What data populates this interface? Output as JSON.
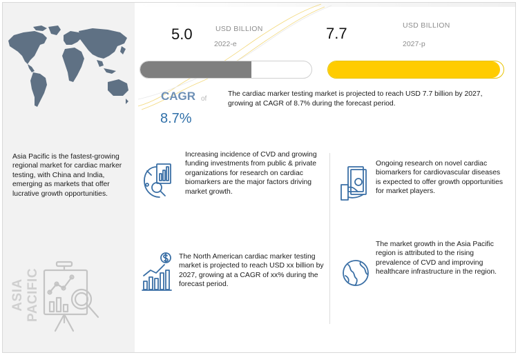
{
  "region_panel": {
    "vertical_label": "ASIA PACIFIC",
    "description": "Asia Pacific is the fastest-growing regional market for cardiac marker testing, with China and India, emerging as markets that offer lucrative growth opportunities."
  },
  "metrics": {
    "value_2022": "5.0",
    "unit_2022": "USD BILLION",
    "year_2022": "2022-e",
    "value_2027": "7.7",
    "unit_2027": "USD BILLION",
    "year_2027": "2027-p"
  },
  "bars": {
    "fill_2022_fraction": 0.65,
    "fill_2027_fraction": 0.98,
    "color_2022": "#7f7f7f",
    "color_2027": "#ffcc00"
  },
  "cagr": {
    "label": "CAGR",
    "of": "of",
    "value": "8.7%"
  },
  "summary": "The cardiac marker testing market is projected to reach USD 7.7 billion by 2027, growing at CAGR  of 8.7% during the forecast period.",
  "drivers": [
    {
      "icon": "research-chart-icon",
      "text": "Increasing incidence of CVD and growing funding investments from public & private organizations for research on cardiac biomarkers are the major factors driving market growth."
    },
    {
      "icon": "money-hand-icon",
      "text": "Ongoing research on novel cardiac biomarkers for cardiovascular diseases is expected to offer growth opportunities for market players."
    },
    {
      "icon": "dollar-growth-icon",
      "text": "The North American cardiac marker testing market is projected to reach USD xx billion by 2027, growing at a CAGR of xx% during the forecast period."
    },
    {
      "icon": "globe-icon",
      "text": "The market growth in the Asia Pacific region is attributed to the rising prevalence of CVD and improving healthcare infrastructure in the region."
    }
  ],
  "colors": {
    "accent_blue": "#2f6fa8",
    "icon_blue": "#3a6fa5",
    "map_gray": "#5f7184"
  }
}
